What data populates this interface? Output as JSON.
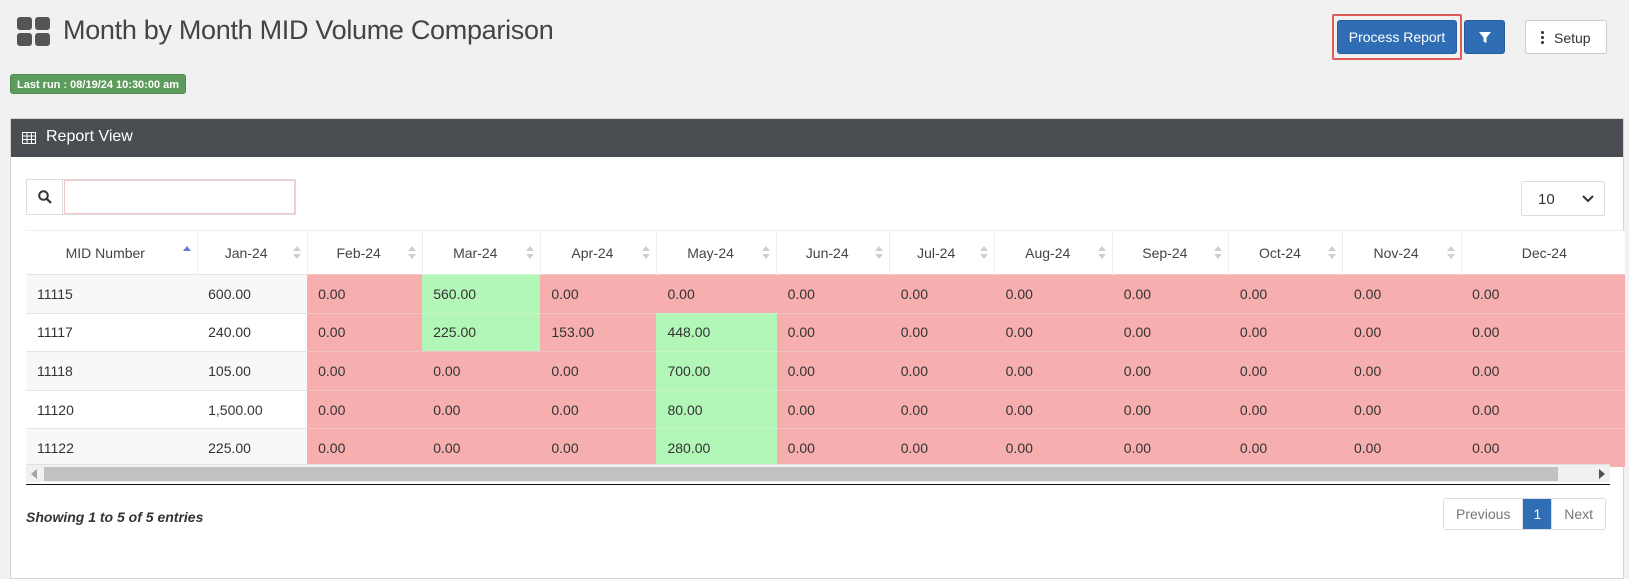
{
  "header": {
    "title": "Month by Month MID Volume Comparison",
    "last_run": "Last run : 08/19/24 10:30:00 am",
    "process_label": "Process Report",
    "setup_label": "Setup"
  },
  "panel": {
    "title": "Report View"
  },
  "search": {
    "value": "",
    "placeholder": ""
  },
  "page_size": "10",
  "table": {
    "columns": [
      "MID Number",
      "Jan-24",
      "Feb-24",
      "Mar-24",
      "Apr-24",
      "May-24",
      "Jun-24",
      "Jul-24",
      "Aug-24",
      "Sep-24",
      "Oct-24",
      "Nov-24",
      "Dec-24"
    ],
    "sorted_column": "MID Number",
    "rows": [
      {
        "cells": [
          "11115",
          "600.00",
          "0.00",
          "560.00",
          "0.00",
          "0.00",
          "0.00",
          "0.00",
          "0.00",
          "0.00",
          "0.00",
          "0.00",
          "0.00"
        ],
        "status": [
          "plain",
          "plain",
          "red",
          "green",
          "red",
          "red",
          "red",
          "red",
          "red",
          "red",
          "red",
          "red",
          "red"
        ]
      },
      {
        "cells": [
          "11117",
          "240.00",
          "0.00",
          "225.00",
          "153.00",
          "448.00",
          "0.00",
          "0.00",
          "0.00",
          "0.00",
          "0.00",
          "0.00",
          "0.00"
        ],
        "status": [
          "plain",
          "plain",
          "red",
          "green",
          "red",
          "green",
          "red",
          "red",
          "red",
          "red",
          "red",
          "red",
          "red"
        ]
      },
      {
        "cells": [
          "11118",
          "105.00",
          "0.00",
          "0.00",
          "0.00",
          "700.00",
          "0.00",
          "0.00",
          "0.00",
          "0.00",
          "0.00",
          "0.00",
          "0.00"
        ],
        "status": [
          "plain",
          "plain",
          "red",
          "red",
          "red",
          "green",
          "red",
          "red",
          "red",
          "red",
          "red",
          "red",
          "red"
        ]
      },
      {
        "cells": [
          "11120",
          "1,500.00",
          "0.00",
          "0.00",
          "0.00",
          "80.00",
          "0.00",
          "0.00",
          "0.00",
          "0.00",
          "0.00",
          "0.00",
          "0.00"
        ],
        "status": [
          "plain",
          "plain",
          "red",
          "red",
          "red",
          "green",
          "red",
          "red",
          "red",
          "red",
          "red",
          "red",
          "red"
        ]
      },
      {
        "cells": [
          "11122",
          "225.00",
          "0.00",
          "0.00",
          "0.00",
          "280.00",
          "0.00",
          "0.00",
          "0.00",
          "0.00",
          "0.00",
          "0.00",
          "0.00"
        ],
        "status": [
          "plain",
          "plain",
          "red",
          "red",
          "red",
          "green",
          "red",
          "red",
          "red",
          "red",
          "red",
          "red",
          "red"
        ]
      }
    ]
  },
  "footer": {
    "info": "Showing 1 to 5 of 5 entries",
    "prev": "Previous",
    "current_page": "1",
    "next": "Next"
  },
  "colors": {
    "primary": "#2f6eb5",
    "decrease": "#f7aeae",
    "increase": "#b3f7b8",
    "last_run_badge": "#5d9b5d",
    "panel_header": "#4a4d51"
  }
}
